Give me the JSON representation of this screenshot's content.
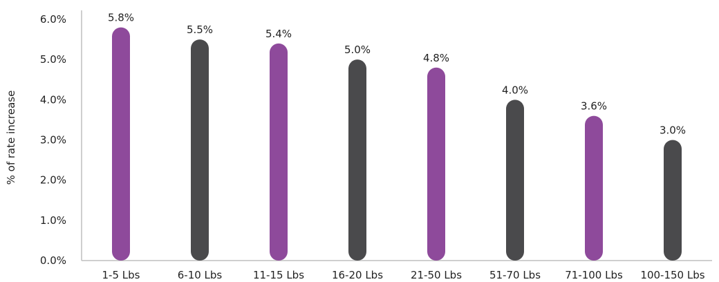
{
  "chart_data": {
    "type": "bar",
    "title": "",
    "xlabel": "",
    "ylabel": "% of rate increase",
    "categories": [
      "1-5 Lbs",
      "6-10 Lbs",
      "11-15 Lbs",
      "16-20 Lbs",
      "21-50 Lbs",
      "51-70 Lbs",
      "71-100 Lbs",
      "100-150 Lbs"
    ],
    "values": [
      5.8,
      5.5,
      5.4,
      5.0,
      4.8,
      4.0,
      3.6,
      3.0
    ],
    "value_labels": [
      "5.8%",
      "5.5%",
      "5.4%",
      "5.0%",
      "4.8%",
      "4.0%",
      "3.6%",
      "3.0%"
    ],
    "ylim": [
      0,
      6
    ],
    "yticks": [
      0,
      1,
      2,
      3,
      4,
      5,
      6
    ],
    "ytick_labels": [
      "0.0%",
      "1.0%",
      "2.0%",
      "3.0%",
      "4.0%",
      "5.0%",
      "6.0%"
    ],
    "grid": false,
    "legend": "none",
    "bar_colors": [
      "#8e4a9b",
      "#4a4a4c",
      "#8e4a9b",
      "#4a4a4c",
      "#8e4a9b",
      "#4a4a4c",
      "#8e4a9b",
      "#4a4a4c"
    ],
    "axis_color": "#bfbfbf"
  }
}
